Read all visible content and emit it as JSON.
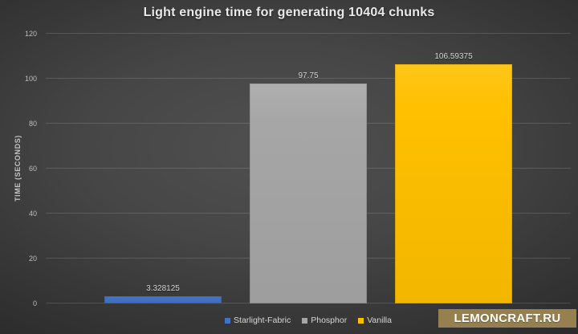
{
  "title": "Light engine time for generating 10404 chunks",
  "watermark": "LEMONCRAFT.RU",
  "colors": {
    "starlight_fabric": "#4472c4",
    "phosphor": "#a6a6a6",
    "vanilla": "#ffc000",
    "background_center": "#4e4e4e",
    "background_edge": "#232323",
    "watermark_bg": "#97804f",
    "text": "#d6d6d6"
  },
  "chart_data": {
    "type": "bar",
    "title": "Light engine time for generating 10404 chunks",
    "categories": [
      "Starlight-Fabric",
      "Phosphor",
      "Vanilla"
    ],
    "values": [
      3.328125,
      97.75,
      106.59375
    ],
    "value_labels": [
      "3.328125",
      "97.75",
      "106.59375"
    ],
    "colors": [
      "#4472c4",
      "#a6a6a6",
      "#ffc000"
    ],
    "xlabel": "",
    "ylabel": "TIME (SECONDS)",
    "ylim": [
      0,
      120
    ],
    "yticks": [
      0,
      20,
      40,
      60,
      80,
      100,
      120
    ],
    "grid": true,
    "legend_position": "bottom"
  }
}
